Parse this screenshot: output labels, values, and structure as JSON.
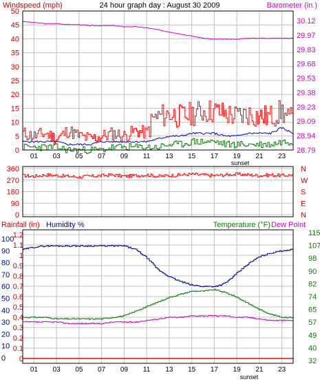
{
  "title": "24 hour graph day : August 30 2009",
  "sunset_label": "sunset",
  "hour_ticks": [
    "01",
    "03",
    "05",
    "07",
    "09",
    "11",
    "13",
    "15",
    "17",
    "19",
    "21",
    "23"
  ],
  "colors": {
    "wind": "#ff0000",
    "gust": "#ff0000",
    "wind_avg": "#0000cc",
    "wind_low": "#008000",
    "barometer": "#cc00cc",
    "direction": "#ff0000",
    "humidity": "#000099",
    "temperature": "#008000",
    "dewpoint": "#cc00cc",
    "rainfall": "#ff0000",
    "grid": "#c0c0c0",
    "axis_text_red": "#cc0000",
    "axis_text_magenta": "#cc00cc",
    "axis_text_blue": "#000099",
    "axis_text_green": "#008000"
  },
  "chart_data": [
    {
      "type": "line",
      "panel": "wind-barometer",
      "left_axis_label": "Windspeed (mph)",
      "right_axis_label": "Barometer (in.)",
      "left_ticks": [
        "50",
        "45",
        "40",
        "35",
        "30",
        "25",
        "20",
        "15",
        "10",
        "5",
        "0"
      ],
      "right_ticks": [
        "30.12",
        "29.97",
        "29.83",
        "29.68",
        "29.53",
        "29.38",
        "29.23",
        "29.09",
        "28.94",
        "28.79"
      ],
      "ylim_left": [
        0,
        50
      ],
      "ylim_right": [
        28.79,
        30.12
      ],
      "xlim_hours": [
        0,
        24
      ],
      "series": [
        {
          "key": "gust",
          "x": [
            0,
            1,
            2,
            3,
            4,
            5,
            6,
            7,
            8,
            9,
            10,
            11,
            11.5,
            12,
            13,
            14,
            15,
            16,
            17,
            18,
            19,
            20,
            21,
            22,
            23,
            23.5,
            24
          ],
          "values": [
            6,
            5,
            6,
            4,
            7,
            5,
            4,
            5,
            6,
            5,
            7,
            6,
            11,
            12,
            13,
            12,
            13,
            14,
            14,
            13,
            12,
            13,
            12,
            12,
            14,
            11,
            11
          ]
        },
        {
          "key": "wind_avg",
          "x": [
            0,
            1,
            2,
            3,
            4,
            5,
            6,
            7,
            8,
            9,
            10,
            11,
            12,
            13,
            14,
            15,
            16,
            17,
            18,
            19,
            20,
            21,
            22,
            23,
            24
          ],
          "values": [
            3,
            3,
            3,
            3,
            2,
            2,
            2,
            3,
            3,
            3,
            3,
            3,
            4,
            5,
            5,
            6,
            6,
            6,
            5,
            5,
            6,
            6,
            6,
            8,
            6
          ]
        },
        {
          "key": "wind_low",
          "x": [
            0,
            1,
            2,
            3,
            4,
            5,
            6,
            7,
            8,
            9,
            10,
            11,
            12,
            13,
            14,
            15,
            16,
            17,
            18,
            19,
            20,
            21,
            22,
            23,
            24
          ],
          "values": [
            1,
            1,
            1,
            1,
            0,
            0,
            0,
            0,
            1,
            1,
            1,
            1,
            1,
            2,
            2,
            3,
            3,
            3,
            2,
            2,
            2,
            2,
            2,
            3,
            3
          ]
        },
        {
          "key": "barometer",
          "axis": "right",
          "x": [
            0,
            1,
            2,
            3,
            4,
            5,
            6,
            7,
            8,
            9,
            10,
            11,
            12,
            13,
            14,
            15,
            16,
            17,
            18,
            19,
            20,
            21,
            22,
            23,
            24
          ],
          "values": [
            30.02,
            30.01,
            30.0,
            30.0,
            29.99,
            29.99,
            29.98,
            29.98,
            29.98,
            29.97,
            29.97,
            29.96,
            29.94,
            29.92,
            29.9,
            29.88,
            29.86,
            29.85,
            29.85,
            29.85,
            29.86,
            29.86,
            29.86,
            29.86,
            29.86
          ]
        }
      ]
    },
    {
      "type": "line",
      "panel": "wind-direction",
      "left_ticks": [
        "360",
        "270",
        "180",
        "90",
        "0"
      ],
      "right_ticks": [
        "N",
        "W",
        "S",
        "E",
        "N"
      ],
      "ylim": [
        0,
        360
      ],
      "xlim_hours": [
        0,
        24
      ],
      "series": [
        {
          "key": "direction",
          "x": [
            0,
            1,
            2,
            3,
            4,
            5,
            6,
            7,
            8,
            9,
            10,
            11,
            12,
            13,
            14,
            15,
            16,
            17,
            18,
            19,
            20,
            21,
            22,
            23,
            24
          ],
          "values": [
            295,
            290,
            300,
            295,
            290,
            285,
            290,
            295,
            300,
            290,
            295,
            300,
            290,
            295,
            300,
            305,
            300,
            295,
            300,
            305,
            300,
            295,
            300,
            295,
            300
          ]
        }
      ]
    },
    {
      "type": "line",
      "panel": "humidity-temperature",
      "rainfall_label": "Rainfall (in)",
      "humidity_label": "Humidity %",
      "temperature_label": "Temperature (°F)",
      "dewpoint_label": "Dew Point",
      "rain_ticks": [
        "1.2",
        "1.1",
        "1",
        "0.9",
        "0.8",
        "0.7",
        "0.6",
        "0.5",
        "0.4",
        "0.3",
        "0.2",
        "0.1",
        "0"
      ],
      "humidity_ticks": [
        "100",
        "90",
        "80",
        "70",
        "60",
        "50",
        "40",
        "30",
        "20",
        "10",
        "0"
      ],
      "temp_ticks": [
        "115",
        "107",
        "98",
        "90",
        "82",
        "74",
        "65",
        "57",
        "49",
        "40",
        "32"
      ],
      "ylim_humidity": [
        0,
        100
      ],
      "ylim_temperature": [
        32,
        115
      ],
      "ylim_rain": [
        0,
        1.2
      ],
      "xlim_hours": [
        0,
        24
      ],
      "series": [
        {
          "key": "humidity",
          "x": [
            0,
            1,
            2,
            3,
            4,
            5,
            6,
            7,
            8,
            9,
            10,
            11,
            12,
            13,
            14,
            15,
            16,
            17,
            17.5,
            18,
            19,
            20,
            21,
            22,
            23,
            24
          ],
          "values": [
            91,
            93,
            94,
            94,
            94,
            94,
            94,
            94,
            94,
            94,
            91,
            84,
            74,
            68,
            64,
            61,
            60,
            60,
            61,
            63,
            71,
            79,
            85,
            88,
            90,
            91
          ]
        },
        {
          "key": "temperature",
          "axis": "temperature",
          "x": [
            0,
            1,
            2,
            3,
            4,
            5,
            6,
            7,
            8,
            9,
            10,
            11,
            12,
            13,
            14,
            15,
            16,
            17,
            18,
            19,
            20,
            21,
            22,
            23,
            24
          ],
          "values": [
            60,
            60,
            60,
            59,
            59,
            59,
            59,
            59,
            60,
            61,
            64,
            67,
            70,
            73,
            75,
            77,
            77,
            78,
            76,
            73,
            69,
            65,
            62,
            60,
            60
          ]
        },
        {
          "key": "dewpoint",
          "axis": "temperature",
          "x": [
            0,
            1,
            2,
            3,
            4,
            5,
            6,
            7,
            8,
            9,
            10,
            11,
            12,
            13,
            14,
            15,
            16,
            17,
            18,
            19,
            20,
            21,
            22,
            23,
            24
          ],
          "values": [
            57,
            57,
            57,
            57,
            56,
            56,
            56,
            56,
            57,
            57,
            57,
            58,
            59,
            60,
            60,
            61,
            61,
            61,
            61,
            60,
            60,
            59,
            58,
            58,
            58
          ]
        },
        {
          "key": "rainfall",
          "axis": "rain",
          "x": [
            0,
            24
          ],
          "values": [
            0,
            0
          ]
        }
      ]
    }
  ]
}
